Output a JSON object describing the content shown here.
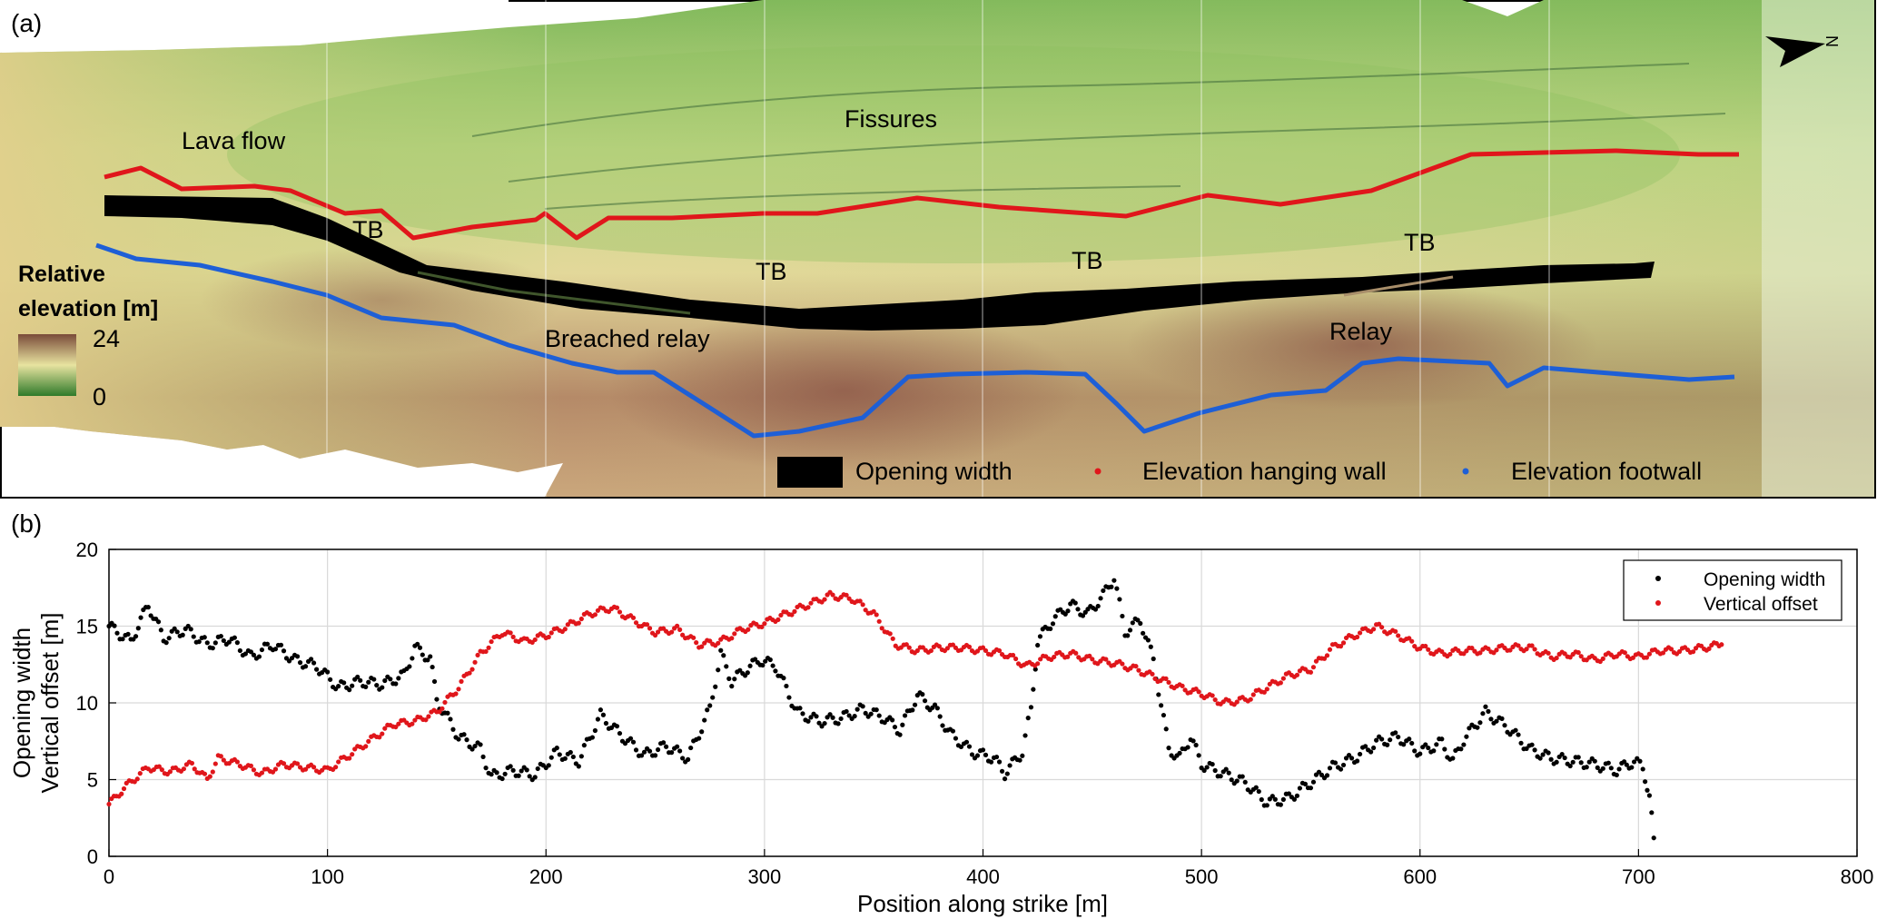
{
  "panel_a": {
    "label": "(a)",
    "north_label": "N",
    "colorbar": {
      "title_line1": "Relative",
      "title_line2": "elevation [m]",
      "max_label": "24",
      "min_label": "0"
    },
    "annotations": [
      "Lava flow",
      "Fissures",
      "TB",
      "TB",
      "TB",
      "TB",
      "Breached relay",
      "Relay"
    ],
    "legend": [
      "Opening width",
      "Elevation hanging wall",
      "Elevation footwall"
    ],
    "colors": {
      "hanging_wall": "#e0161b",
      "footwall": "#1e5fd6",
      "opening": "#000000",
      "terrain_low": "#5c9a3a",
      "terrain_mid": "#e6e09a",
      "terrain_high": "#7a4b3a"
    }
  },
  "panel_b": {
    "label": "(b)",
    "ylabel_line1": "Opening width",
    "ylabel_line2": "Vertical offset [m]"
  },
  "chart_data": {
    "type": "scatter",
    "xlabel": "Position along strike [m]",
    "ylabel": "Opening width\nVertical offset [m]",
    "xlim": [
      0,
      800
    ],
    "ylim": [
      0,
      20
    ],
    "x_ticks": [
      "0",
      "100",
      "200",
      "300",
      "400",
      "500",
      "600",
      "700",
      "800"
    ],
    "y_ticks": [
      "0",
      "5",
      "10",
      "15",
      "20"
    ],
    "grid": true,
    "legend_position": "top-right",
    "series": [
      {
        "name": "Opening width",
        "color": "#000000",
        "points": [
          [
            0,
            15.0
          ],
          [
            10,
            14.0
          ],
          [
            18,
            16.4
          ],
          [
            25,
            14.2
          ],
          [
            35,
            14.8
          ],
          [
            45,
            13.8
          ],
          [
            55,
            14.2
          ],
          [
            65,
            13.0
          ],
          [
            75,
            13.8
          ],
          [
            85,
            12.8
          ],
          [
            95,
            12.4
          ],
          [
            105,
            11.0
          ],
          [
            115,
            11.4
          ],
          [
            125,
            11.2
          ],
          [
            135,
            11.8
          ],
          [
            140,
            13.6
          ],
          [
            147,
            12.9
          ],
          [
            150,
            10.2
          ],
          [
            160,
            7.8
          ],
          [
            170,
            7.0
          ],
          [
            175,
            5.2
          ],
          [
            185,
            5.6
          ],
          [
            195,
            5.3
          ],
          [
            205,
            6.8
          ],
          [
            215,
            6.2
          ],
          [
            225,
            9.2
          ],
          [
            235,
            7.8
          ],
          [
            245,
            6.6
          ],
          [
            255,
            7.2
          ],
          [
            265,
            6.4
          ],
          [
            275,
            9.6
          ],
          [
            280,
            13.2
          ],
          [
            285,
            11.4
          ],
          [
            290,
            12.0
          ],
          [
            298,
            12.8
          ],
          [
            305,
            12.4
          ],
          [
            315,
            9.4
          ],
          [
            325,
            8.8
          ],
          [
            335,
            9.0
          ],
          [
            345,
            9.6
          ],
          [
            355,
            9.0
          ],
          [
            362,
            8.2
          ],
          [
            370,
            10.5
          ],
          [
            378,
            9.6
          ],
          [
            385,
            8.0
          ],
          [
            395,
            6.8
          ],
          [
            405,
            6.4
          ],
          [
            410,
            5.4
          ],
          [
            418,
            6.8
          ],
          [
            422,
            9.6
          ],
          [
            425,
            14.0
          ],
          [
            432,
            15.4
          ],
          [
            440,
            16.4
          ],
          [
            448,
            15.8
          ],
          [
            455,
            17.0
          ],
          [
            460,
            18.2
          ],
          [
            465,
            14.6
          ],
          [
            472,
            15.4
          ],
          [
            478,
            12.8
          ],
          [
            485,
            7.0
          ],
          [
            490,
            6.4
          ],
          [
            495,
            7.8
          ],
          [
            500,
            6.0
          ],
          [
            510,
            5.4
          ],
          [
            520,
            4.8
          ],
          [
            530,
            3.5
          ],
          [
            540,
            3.8
          ],
          [
            550,
            4.8
          ],
          [
            560,
            5.8
          ],
          [
            570,
            6.4
          ],
          [
            580,
            7.4
          ],
          [
            590,
            7.8
          ],
          [
            600,
            6.8
          ],
          [
            610,
            7.4
          ],
          [
            615,
            6.2
          ],
          [
            620,
            7.6
          ],
          [
            630,
            9.4
          ],
          [
            640,
            8.4
          ],
          [
            650,
            7.0
          ],
          [
            660,
            6.4
          ],
          [
            670,
            6.2
          ],
          [
            680,
            6.0
          ],
          [
            690,
            5.6
          ],
          [
            698,
            6.2
          ],
          [
            702,
            5.8
          ],
          [
            705,
            4.0
          ],
          [
            707,
            1.2
          ]
        ]
      },
      {
        "name": "Vertical offset",
        "color": "#e0161b",
        "points": [
          [
            0,
            3.4
          ],
          [
            8,
            4.6
          ],
          [
            18,
            5.8
          ],
          [
            28,
            5.5
          ],
          [
            38,
            6.0
          ],
          [
            45,
            5.0
          ],
          [
            50,
            6.4
          ],
          [
            60,
            6.0
          ],
          [
            70,
            5.4
          ],
          [
            80,
            6.0
          ],
          [
            90,
            5.8
          ],
          [
            100,
            5.6
          ],
          [
            110,
            6.6
          ],
          [
            120,
            7.6
          ],
          [
            130,
            8.6
          ],
          [
            140,
            8.8
          ],
          [
            150,
            9.4
          ],
          [
            160,
            11.0
          ],
          [
            170,
            13.2
          ],
          [
            180,
            14.6
          ],
          [
            190,
            14.0
          ],
          [
            200,
            14.4
          ],
          [
            210,
            15.0
          ],
          [
            220,
            15.8
          ],
          [
            230,
            16.2
          ],
          [
            240,
            15.4
          ],
          [
            250,
            14.6
          ],
          [
            260,
            14.8
          ],
          [
            270,
            13.8
          ],
          [
            280,
            14.0
          ],
          [
            290,
            14.8
          ],
          [
            300,
            15.2
          ],
          [
            310,
            15.8
          ],
          [
            320,
            16.4
          ],
          [
            330,
            17.0
          ],
          [
            340,
            16.8
          ],
          [
            350,
            15.8
          ],
          [
            360,
            13.8
          ],
          [
            370,
            13.4
          ],
          [
            380,
            13.6
          ],
          [
            390,
            13.6
          ],
          [
            400,
            13.4
          ],
          [
            410,
            13.2
          ],
          [
            420,
            12.4
          ],
          [
            430,
            13.0
          ],
          [
            440,
            13.2
          ],
          [
            450,
            12.8
          ],
          [
            460,
            12.6
          ],
          [
            470,
            12.2
          ],
          [
            480,
            11.6
          ],
          [
            490,
            11.0
          ],
          [
            500,
            10.6
          ],
          [
            510,
            10.0
          ],
          [
            520,
            10.2
          ],
          [
            530,
            11.0
          ],
          [
            540,
            11.8
          ],
          [
            550,
            12.2
          ],
          [
            560,
            13.6
          ],
          [
            570,
            14.4
          ],
          [
            580,
            15.0
          ],
          [
            590,
            14.4
          ],
          [
            600,
            13.6
          ],
          [
            610,
            13.2
          ],
          [
            620,
            13.4
          ],
          [
            630,
            13.4
          ],
          [
            640,
            13.6
          ],
          [
            650,
            13.6
          ],
          [
            660,
            13.0
          ],
          [
            670,
            13.2
          ],
          [
            680,
            12.8
          ],
          [
            690,
            13.2
          ],
          [
            700,
            13.0
          ],
          [
            710,
            13.4
          ],
          [
            720,
            13.4
          ],
          [
            730,
            13.6
          ],
          [
            738,
            13.8
          ]
        ]
      }
    ]
  }
}
